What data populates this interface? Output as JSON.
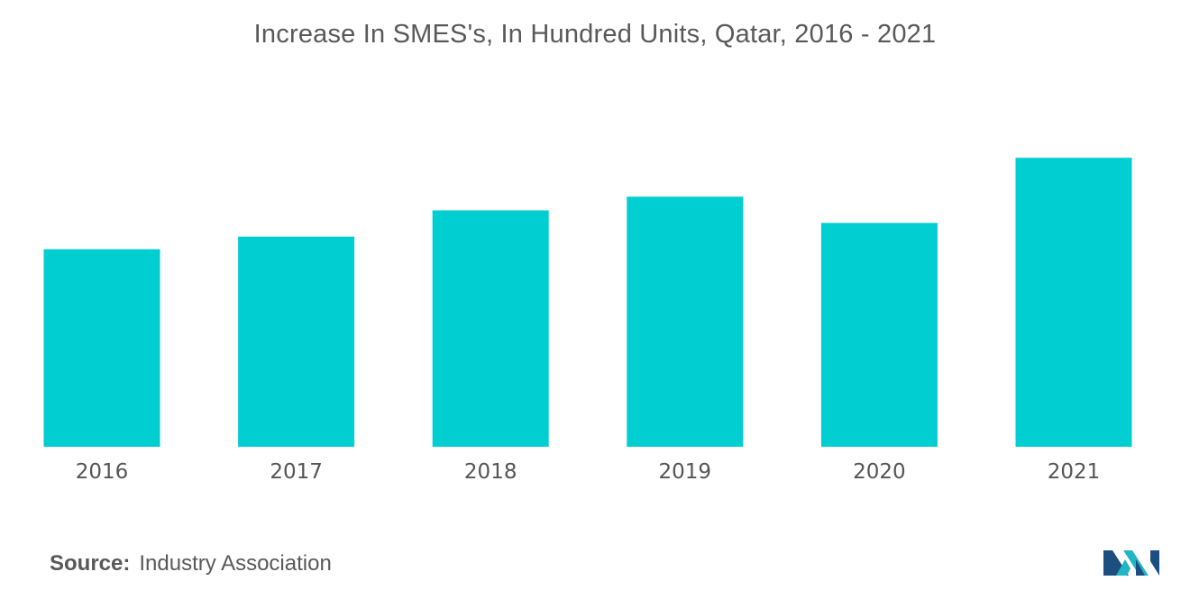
{
  "colors": {
    "bar": "#00CED1",
    "logo_dark": "#1C4E80",
    "logo_teal": "#21B6C4"
  },
  "chart_data": {
    "type": "bar",
    "title": "Increase In SMES's, In Hundred Units, Qatar, 2016 - 2021",
    "categories": [
      "2016",
      "2017",
      "2018",
      "2019",
      "2020",
      "2021"
    ],
    "values": [
      188,
      200,
      225,
      238,
      213,
      275
    ],
    "xlabel": "",
    "ylabel": "",
    "ylim": [
      0,
      300
    ],
    "grid": false,
    "legend": "none"
  },
  "source": {
    "key": "Source:",
    "value": "Industry Association"
  },
  "logo": {
    "icon": "mordor-intelligence-logo-icon"
  }
}
